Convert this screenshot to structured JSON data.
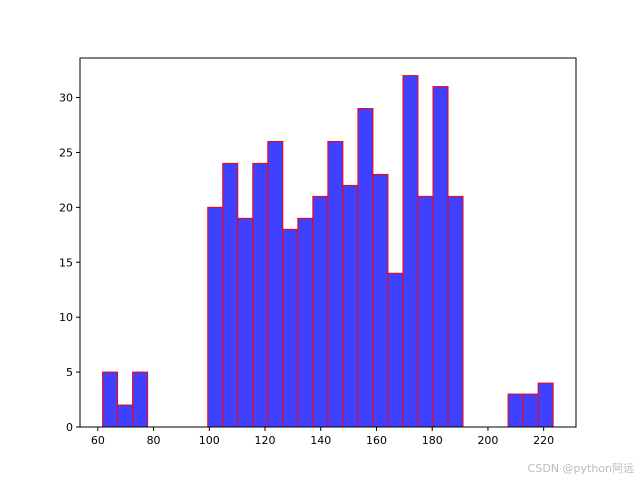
{
  "chart_data": {
    "type": "histogram",
    "bins": [
      61.7,
      67.09,
      72.48,
      77.87,
      83.26,
      88.65,
      94.04,
      99.43,
      104.82,
      110.21,
      115.6,
      120.99,
      126.38,
      131.77,
      137.16,
      142.55,
      147.94,
      153.33,
      158.72,
      164.11,
      169.5,
      174.89,
      180.28,
      185.67,
      191.06,
      196.45,
      201.84,
      207.23,
      212.62,
      218.01,
      223.4
    ],
    "values": [
      5,
      2,
      5,
      0,
      0,
      0,
      0,
      20,
      24,
      19,
      24,
      26,
      18,
      19,
      21,
      26,
      22,
      29,
      23,
      14,
      32,
      21,
      31,
      21,
      0,
      0,
      0,
      3,
      3,
      4
    ],
    "color": "#3a3aff",
    "edgecolor": "#ff0000",
    "xlim": [
      53.6,
      231.6
    ],
    "xticks": [
      60,
      80,
      100,
      120,
      140,
      160,
      180,
      200,
      220
    ],
    "ylim": [
      0,
      33.6
    ],
    "yticks": [
      0,
      5,
      10,
      15,
      20,
      25,
      30
    ]
  },
  "watermark": "CSDN @python阿远"
}
